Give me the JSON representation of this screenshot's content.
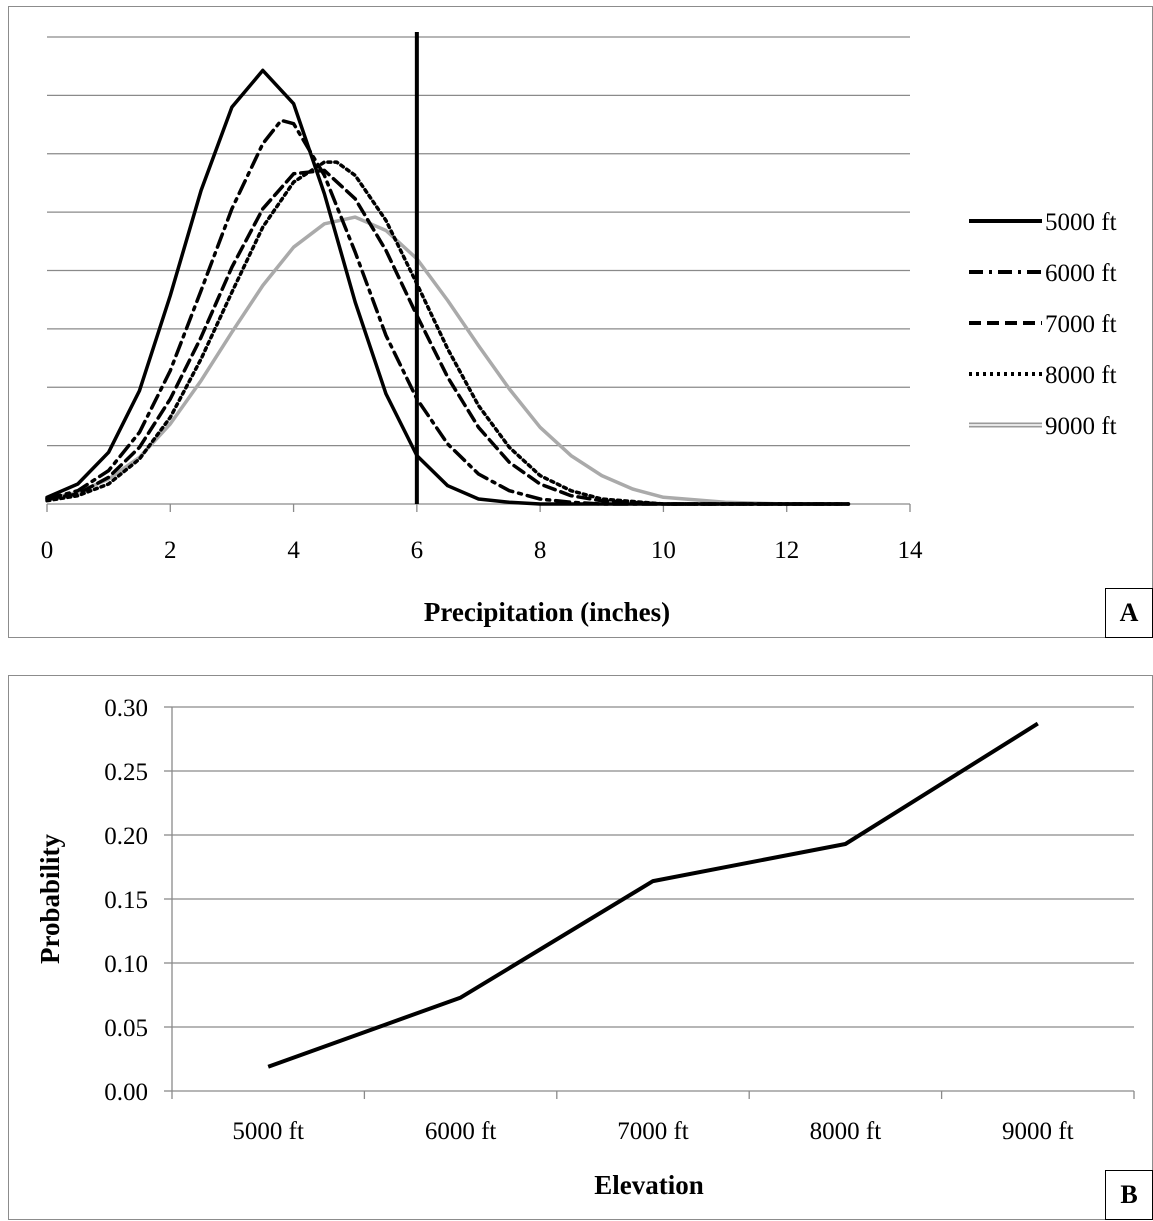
{
  "chart_data": [
    {
      "type": "line",
      "panel_label": "A",
      "xlabel": "Precipitation (inches)",
      "ylabel": "",
      "xlim": [
        0,
        14
      ],
      "xticks": [
        0,
        2,
        4,
        6,
        8,
        10,
        12,
        14
      ],
      "ylim": [
        0,
        0.28
      ],
      "y_tick_labels_shown": false,
      "grid": "horizontal",
      "legend_position": "right",
      "vertical_line": {
        "x": 6,
        "color": "#000000"
      },
      "series": [
        {
          "name": "5000 ft",
          "style": "solid",
          "color": "#000000",
          "x": [
            0,
            0.5,
            1,
            1.5,
            2,
            2.5,
            3,
            3.5,
            4,
            4.5,
            5,
            5.5,
            6,
            6.5,
            7,
            7.5,
            8,
            8.5,
            9,
            10,
            12,
            13
          ],
          "y": [
            0.004,
            0.012,
            0.031,
            0.068,
            0.125,
            0.188,
            0.238,
            0.26,
            0.24,
            0.186,
            0.121,
            0.066,
            0.029,
            0.011,
            0.003,
            0.001,
            0.0,
            0.0,
            0.0,
            0.0,
            0.0,
            0.0
          ]
        },
        {
          "name": "6000 ft",
          "style": "dash-dot",
          "color": "#000000",
          "x": [
            0,
            0.5,
            1,
            1.5,
            2,
            2.5,
            3,
            3.5,
            3.8,
            4,
            4.5,
            5,
            5.5,
            6,
            6.5,
            7,
            7.5,
            8,
            8.5,
            9,
            10,
            12,
            13
          ],
          "y": [
            0.003,
            0.008,
            0.02,
            0.043,
            0.08,
            0.128,
            0.177,
            0.216,
            0.23,
            0.228,
            0.197,
            0.151,
            0.101,
            0.063,
            0.036,
            0.018,
            0.008,
            0.003,
            0.001,
            0.0,
            0.0,
            0.0,
            0.0
          ]
        },
        {
          "name": "7000 ft",
          "style": "dash",
          "color": "#000000",
          "x": [
            0,
            0.5,
            1,
            1.5,
            2,
            2.5,
            3,
            3.5,
            4,
            4.5,
            5,
            5.5,
            6,
            6.5,
            7,
            7.5,
            8,
            8.5,
            9,
            10,
            12,
            13
          ],
          "y": [
            0.003,
            0.006,
            0.016,
            0.034,
            0.063,
            0.1,
            0.142,
            0.177,
            0.198,
            0.2,
            0.183,
            0.152,
            0.113,
            0.076,
            0.046,
            0.025,
            0.012,
            0.005,
            0.002,
            0.0,
            0.0,
            0.0
          ]
        },
        {
          "name": "8000 ft",
          "style": "dot",
          "color": "#000000",
          "x": [
            0,
            0.5,
            1,
            1.5,
            2,
            2.5,
            3,
            3.5,
            4,
            4.5,
            4.7,
            5,
            5.5,
            6,
            6.5,
            7,
            7.5,
            8,
            8.5,
            9,
            10,
            12,
            13
          ],
          "y": [
            0.002,
            0.005,
            0.012,
            0.027,
            0.052,
            0.087,
            0.127,
            0.166,
            0.193,
            0.205,
            0.205,
            0.197,
            0.17,
            0.132,
            0.093,
            0.059,
            0.034,
            0.017,
            0.008,
            0.003,
            0.0,
            0.0,
            0.0
          ]
        },
        {
          "name": "9000 ft",
          "style": "solid",
          "color": "#aaaaaa",
          "x": [
            0,
            0.5,
            1,
            1.5,
            2,
            2.5,
            3,
            3.5,
            4,
            4.5,
            5,
            5.5,
            6,
            6.5,
            7,
            7.5,
            8,
            8.5,
            9,
            9.5,
            10,
            11,
            12,
            13
          ],
          "y": [
            0.003,
            0.007,
            0.015,
            0.028,
            0.048,
            0.074,
            0.103,
            0.131,
            0.154,
            0.168,
            0.172,
            0.164,
            0.147,
            0.122,
            0.095,
            0.069,
            0.046,
            0.029,
            0.017,
            0.009,
            0.004,
            0.001,
            0.0,
            0.0
          ]
        }
      ]
    },
    {
      "type": "line",
      "panel_label": "B",
      "xlabel": "Elevation",
      "ylabel": "Probability",
      "categories": [
        "5000 ft",
        "6000 ft",
        "7000 ft",
        "8000 ft",
        "9000 ft"
      ],
      "values": [
        0.019,
        0.073,
        0.164,
        0.193,
        0.287
      ],
      "ylim": [
        0,
        0.3
      ],
      "yticks": [
        "0.00",
        "0.05",
        "0.10",
        "0.15",
        "0.20",
        "0.25",
        "0.30"
      ],
      "grid": "horizontal",
      "line_color": "#000000"
    }
  ]
}
